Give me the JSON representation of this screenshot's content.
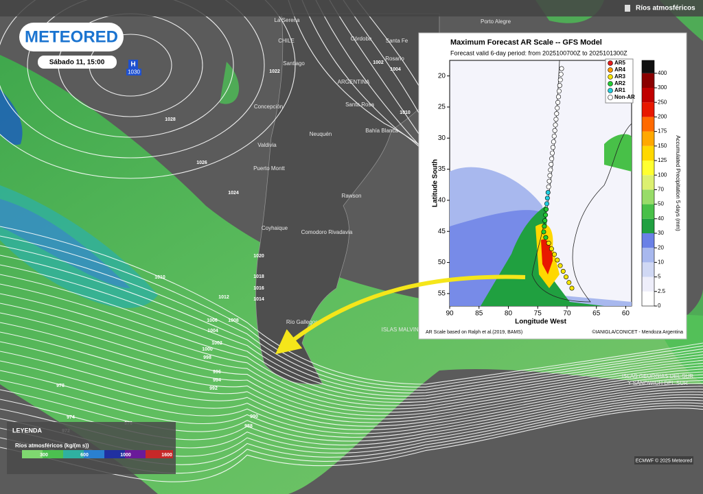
{
  "header": {
    "layer": "Ríos atmosféricos"
  },
  "logo": "METEORED",
  "date": "Sábado 11, 15:00",
  "high": {
    "symbol": "H",
    "pressure": "1030"
  },
  "places": [
    "La Serena",
    "Porto Alegre",
    "Córdoba",
    "Santa Fe",
    "CHILE",
    "Santiago",
    "Rosario",
    "ARGENTINA",
    "Concepción",
    "Santa Rosa",
    "Bahía Blanca",
    "Valdivia",
    "Neuquén",
    "Puerto Montt",
    "Rawson",
    "Coyhaique",
    "Comodoro Rivadavia",
    "Río Gallegos",
    "ISLAS MALVINAS",
    "ISLAS GEORGIAS DEL SUR",
    "Y SANDWICH DEL SUR"
  ],
  "isobar_labels": [
    "1022",
    "1028",
    "1026",
    "1024",
    "1002",
    "1004",
    "1010",
    "1020",
    "1018",
    "1016",
    "1014",
    "1012",
    "1010",
    "1008",
    "1006",
    "1004",
    "1002",
    "1000",
    "998",
    "996",
    "994",
    "992",
    "978",
    "974",
    "972",
    "976",
    "990",
    "988"
  ],
  "legend": {
    "title": "LEYENDA",
    "label": "Ríos atmosféricos (kg/(m s))",
    "ticks": [
      "300",
      "600",
      "1000",
      "1600"
    ]
  },
  "credit": "ECMWF © 2025 Meteored",
  "inset": {
    "title": "Maximum Forecast AR Scale -- GFS Model",
    "subtitle": "Forecast valid 6-day period: from 2025100700Z to 2025101300Z",
    "xlabel": "Longitude West",
    "ylabel": "Latitude South",
    "xlim": [
      90,
      59
    ],
    "ylim": [
      17.5,
      57
    ],
    "xticks": [
      90,
      85,
      80,
      75,
      70,
      65,
      60
    ],
    "yticks": [
      20,
      25,
      30,
      35,
      40,
      45,
      50,
      55
    ],
    "ar_legend": [
      {
        "name": "AR5",
        "color": "#e31a1c"
      },
      {
        "name": "AR4",
        "color": "#ff9900"
      },
      {
        "name": "AR3",
        "color": "#f5e400"
      },
      {
        "name": "AR2",
        "color": "#22cc33"
      },
      {
        "name": "AR1",
        "color": "#22ccdd"
      },
      {
        "name": "Non-AR",
        "color": "#ffffff"
      }
    ],
    "colorbar": {
      "label": "Accumulated Precipitation 5-days (mm)",
      "ticks": [
        0,
        2.5,
        5,
        10,
        20,
        30,
        40,
        50,
        70,
        100,
        125,
        150,
        175,
        200,
        250,
        300,
        400
      ],
      "colors": [
        "#ffffff",
        "#eeeefa",
        "#d0d8f4",
        "#a8b8ee",
        "#6a80e6",
        "#20a040",
        "#48c048",
        "#98dc68",
        "#dcf070",
        "#ffff30",
        "#ffd800",
        "#ffa800",
        "#ff6a00",
        "#e81800",
        "#c00000",
        "#8a0000",
        "#101010"
      ]
    },
    "footer_left": "AR Scale based on Ralph et al.(2019, BAMS)",
    "footer_right": "©IANIGLA/CONICET - Mendoza Argentina"
  }
}
